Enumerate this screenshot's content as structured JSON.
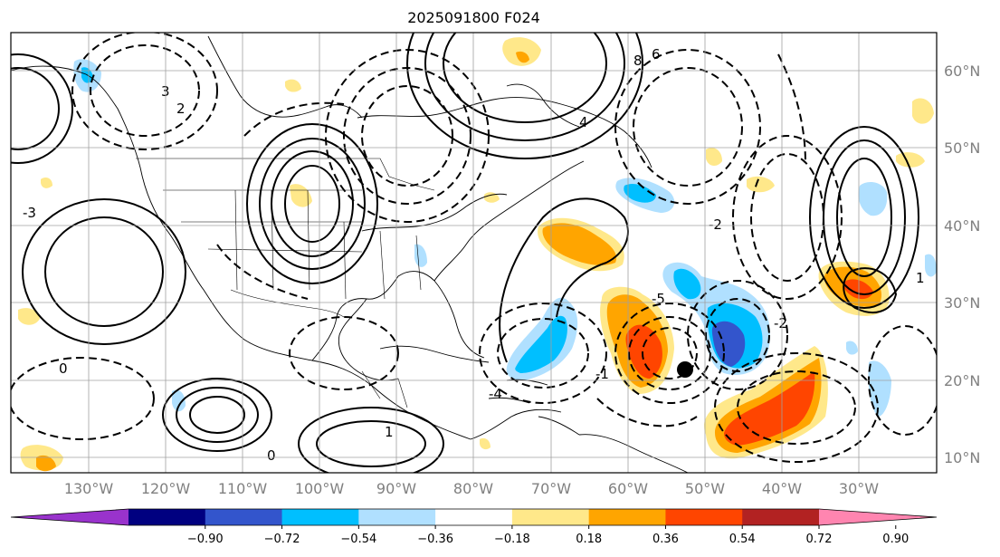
{
  "title": "2025091800 F024",
  "map": {
    "lat_labels": [
      "60°N",
      "50°N",
      "40°N",
      "30°N",
      "20°N",
      "10°N"
    ],
    "lon_labels": [
      "130°W",
      "120°W",
      "110°W",
      "100°W",
      "90°W",
      "80°W",
      "70°W",
      "60°W",
      "50°W",
      "40°W",
      "30°W"
    ],
    "gridlines": true,
    "contour_labels": [
      "8",
      "6",
      "4",
      "2",
      "3",
      "1",
      "0",
      "-1",
      "-2",
      "-3",
      "-4",
      "-5"
    ],
    "contour_styles": {
      "positive": "solid",
      "negative": "dashed"
    },
    "marker": "black-dot"
  },
  "colorbar": {
    "ticks": [
      "−0.90",
      "−0.72",
      "−0.54",
      "−0.36",
      "−0.18",
      "0.18",
      "0.36",
      "0.54",
      "0.72",
      "0.90"
    ],
    "colors": [
      "#9933cc",
      "#000080",
      "#3355cc",
      "#00bfff",
      "#b0e0ff",
      "#ffffff",
      "#ffe88a",
      "#ffa500",
      "#ff4500",
      "#b22222",
      "#ff85b0"
    ],
    "extend": "both"
  }
}
